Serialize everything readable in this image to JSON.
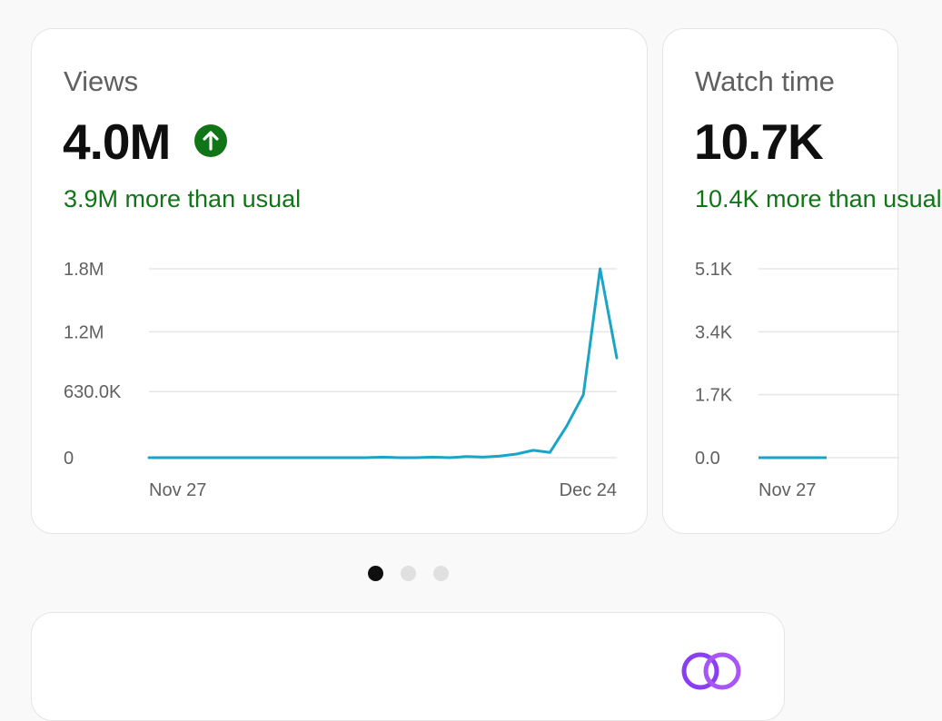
{
  "cards": [
    {
      "title": "Views",
      "value": "4.0M",
      "delta": "3.9M more than usual",
      "trend_icon": "arrow-up-circle-icon",
      "accent": "#107516",
      "y_ticks": [
        "1.8M",
        "1.2M",
        "630.0K",
        "0"
      ],
      "x_ticks": [
        "Nov 27",
        "Dec 24"
      ]
    },
    {
      "title": "Watch time",
      "value": "10.7K",
      "delta": "10.4K more than usual",
      "y_ticks": [
        "5.1K",
        "3.4K",
        "1.7K",
        "0.0"
      ],
      "x_ticks": [
        "Nov 27"
      ]
    }
  ],
  "carousel": {
    "count": 3,
    "active": 0
  },
  "chart_data": [
    {
      "type": "line",
      "title": "",
      "xlabel": "",
      "ylabel": "",
      "ylim": [
        0,
        1800000
      ],
      "y_ticks": [
        0,
        630000,
        1200000,
        1800000
      ],
      "x_tick_labels": [
        "Nov 27",
        "Dec 24"
      ],
      "series_color": "#1aa5c8",
      "series": [
        {
          "name": "",
          "values": [
            0,
            0,
            0,
            0,
            0,
            0,
            0,
            0,
            0,
            0,
            0,
            0,
            0,
            0,
            5000,
            0,
            0,
            5000,
            0,
            10000,
            5000,
            15000,
            35000,
            70000,
            50000,
            300000,
            600000,
            1800000,
            950000
          ]
        }
      ]
    },
    {
      "type": "line",
      "title": "",
      "xlabel": "",
      "ylabel": "",
      "ylim": [
        0,
        5100
      ],
      "y_ticks": [
        0,
        1700,
        3400,
        5100
      ],
      "x_tick_labels": [
        "Nov 27"
      ],
      "series_color": "#1aa5c8",
      "series": [
        {
          "name": "",
          "values": [
            0,
            0
          ]
        }
      ]
    }
  ]
}
